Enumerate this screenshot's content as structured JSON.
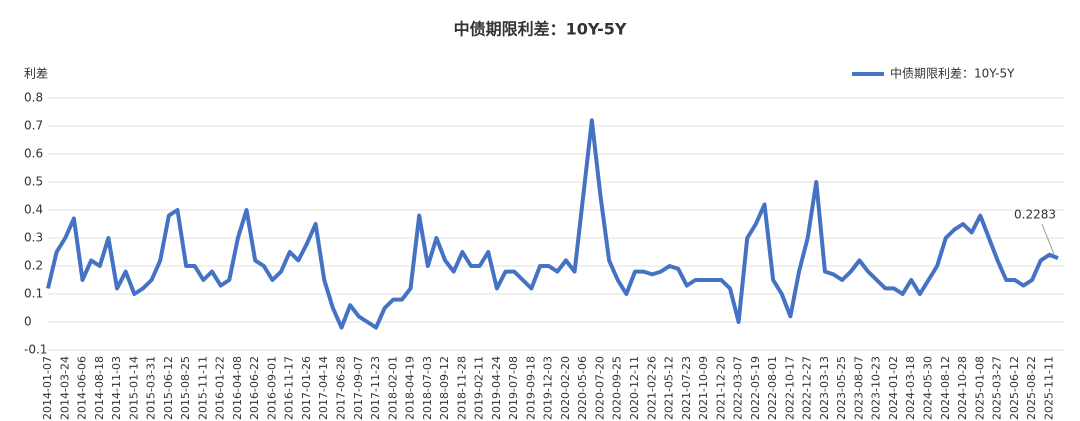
{
  "chart_data": {
    "type": "line",
    "title": "中债期限利差：10Y-5Y",
    "y_label": "利差",
    "categories": [
      "2014-01-07",
      null,
      "2014-03-24",
      null,
      "2014-06-06",
      null,
      "2014-08-18",
      null,
      "2014-11-03",
      null,
      "2015-01-14",
      null,
      "2015-03-31",
      null,
      "2015-06-12",
      null,
      "2015-08-25",
      null,
      "2015-11-11",
      null,
      "2016-01-22",
      null,
      "2016-04-08",
      null,
      "2016-06-22",
      null,
      "2016-09-01",
      null,
      "2016-11-17",
      null,
      "2017-01-26",
      null,
      "2017-04-14",
      null,
      "2017-06-28",
      null,
      "2017-09-07",
      null,
      "2017-11-23",
      null,
      "2018-02-01",
      null,
      "2018-04-19",
      null,
      "2018-07-03",
      null,
      "2018-09-12",
      null,
      "2018-11-28",
      null,
      "2019-02-11",
      null,
      "2019-04-24",
      null,
      "2019-07-08",
      null,
      "2019-09-18",
      null,
      "2019-12-03",
      null,
      "2020-02-20",
      null,
      "2020-05-06",
      null,
      "2020-07-20",
      null,
      "2020-09-25",
      null,
      "2020-12-11",
      null,
      "2021-02-26",
      null,
      "2021-05-12",
      null,
      "2021-07-23",
      null,
      "2021-10-09",
      null,
      "2021-12-20",
      null,
      "2022-03-07",
      null,
      "2022-05-19",
      null,
      "2022-08-01",
      null,
      "2022-10-17",
      null,
      "2022-12-27",
      null,
      "2023-03-13",
      null,
      "2023-05-25",
      null,
      "2023-08-07",
      null,
      "2023-10-23",
      null,
      "2024-01-02",
      null,
      "2024-03-18",
      null,
      "2024-05-30",
      null,
      "2024-08-12",
      null,
      "2024-10-28",
      null,
      "2025-01-08",
      null,
      "2025-03-27",
      null,
      "2025-06-12",
      null,
      "2025-08-22",
      null,
      "2025-11-11",
      null
    ],
    "series": [
      {
        "name": "中债期限利差：10Y-5Y",
        "color": "#4472c4",
        "values": [
          0.12,
          0.25,
          0.3,
          0.37,
          0.15,
          0.22,
          0.2,
          0.3,
          0.12,
          0.18,
          0.1,
          0.12,
          0.15,
          0.22,
          0.38,
          0.4,
          0.2,
          0.2,
          0.15,
          0.18,
          0.13,
          0.15,
          0.3,
          0.4,
          0.22,
          0.2,
          0.15,
          0.18,
          0.25,
          0.22,
          0.28,
          0.35,
          0.15,
          0.05,
          -0.02,
          0.06,
          0.02,
          0.0,
          -0.02,
          0.05,
          0.08,
          0.08,
          0.12,
          0.38,
          0.2,
          0.3,
          0.22,
          0.18,
          0.25,
          0.2,
          0.2,
          0.25,
          0.12,
          0.18,
          0.18,
          0.15,
          0.12,
          0.2,
          0.2,
          0.18,
          0.22,
          0.18,
          0.45,
          0.72,
          0.45,
          0.22,
          0.15,
          0.1,
          0.18,
          0.18,
          0.17,
          0.18,
          0.2,
          0.19,
          0.13,
          0.15,
          0.15,
          0.15,
          0.15,
          0.12,
          0.0,
          0.3,
          0.35,
          0.42,
          0.15,
          0.1,
          0.02,
          0.18,
          0.3,
          0.5,
          0.18,
          0.17,
          0.15,
          0.18,
          0.22,
          0.18,
          0.15,
          0.12,
          0.12,
          0.1,
          0.15,
          0.1,
          0.15,
          0.2,
          0.3,
          0.33,
          0.35,
          0.32,
          0.38,
          0.3,
          0.22,
          0.15,
          0.15,
          0.13,
          0.15,
          0.22,
          0.24,
          0.2283
        ]
      }
    ],
    "ylim": [
      -0.1,
      0.8
    ],
    "yticks": [
      -0.1,
      0,
      0.1,
      0.2,
      0.3,
      0.4,
      0.5,
      0.6,
      0.7,
      0.8
    ],
    "grid": true,
    "legend": "top-right"
  }
}
